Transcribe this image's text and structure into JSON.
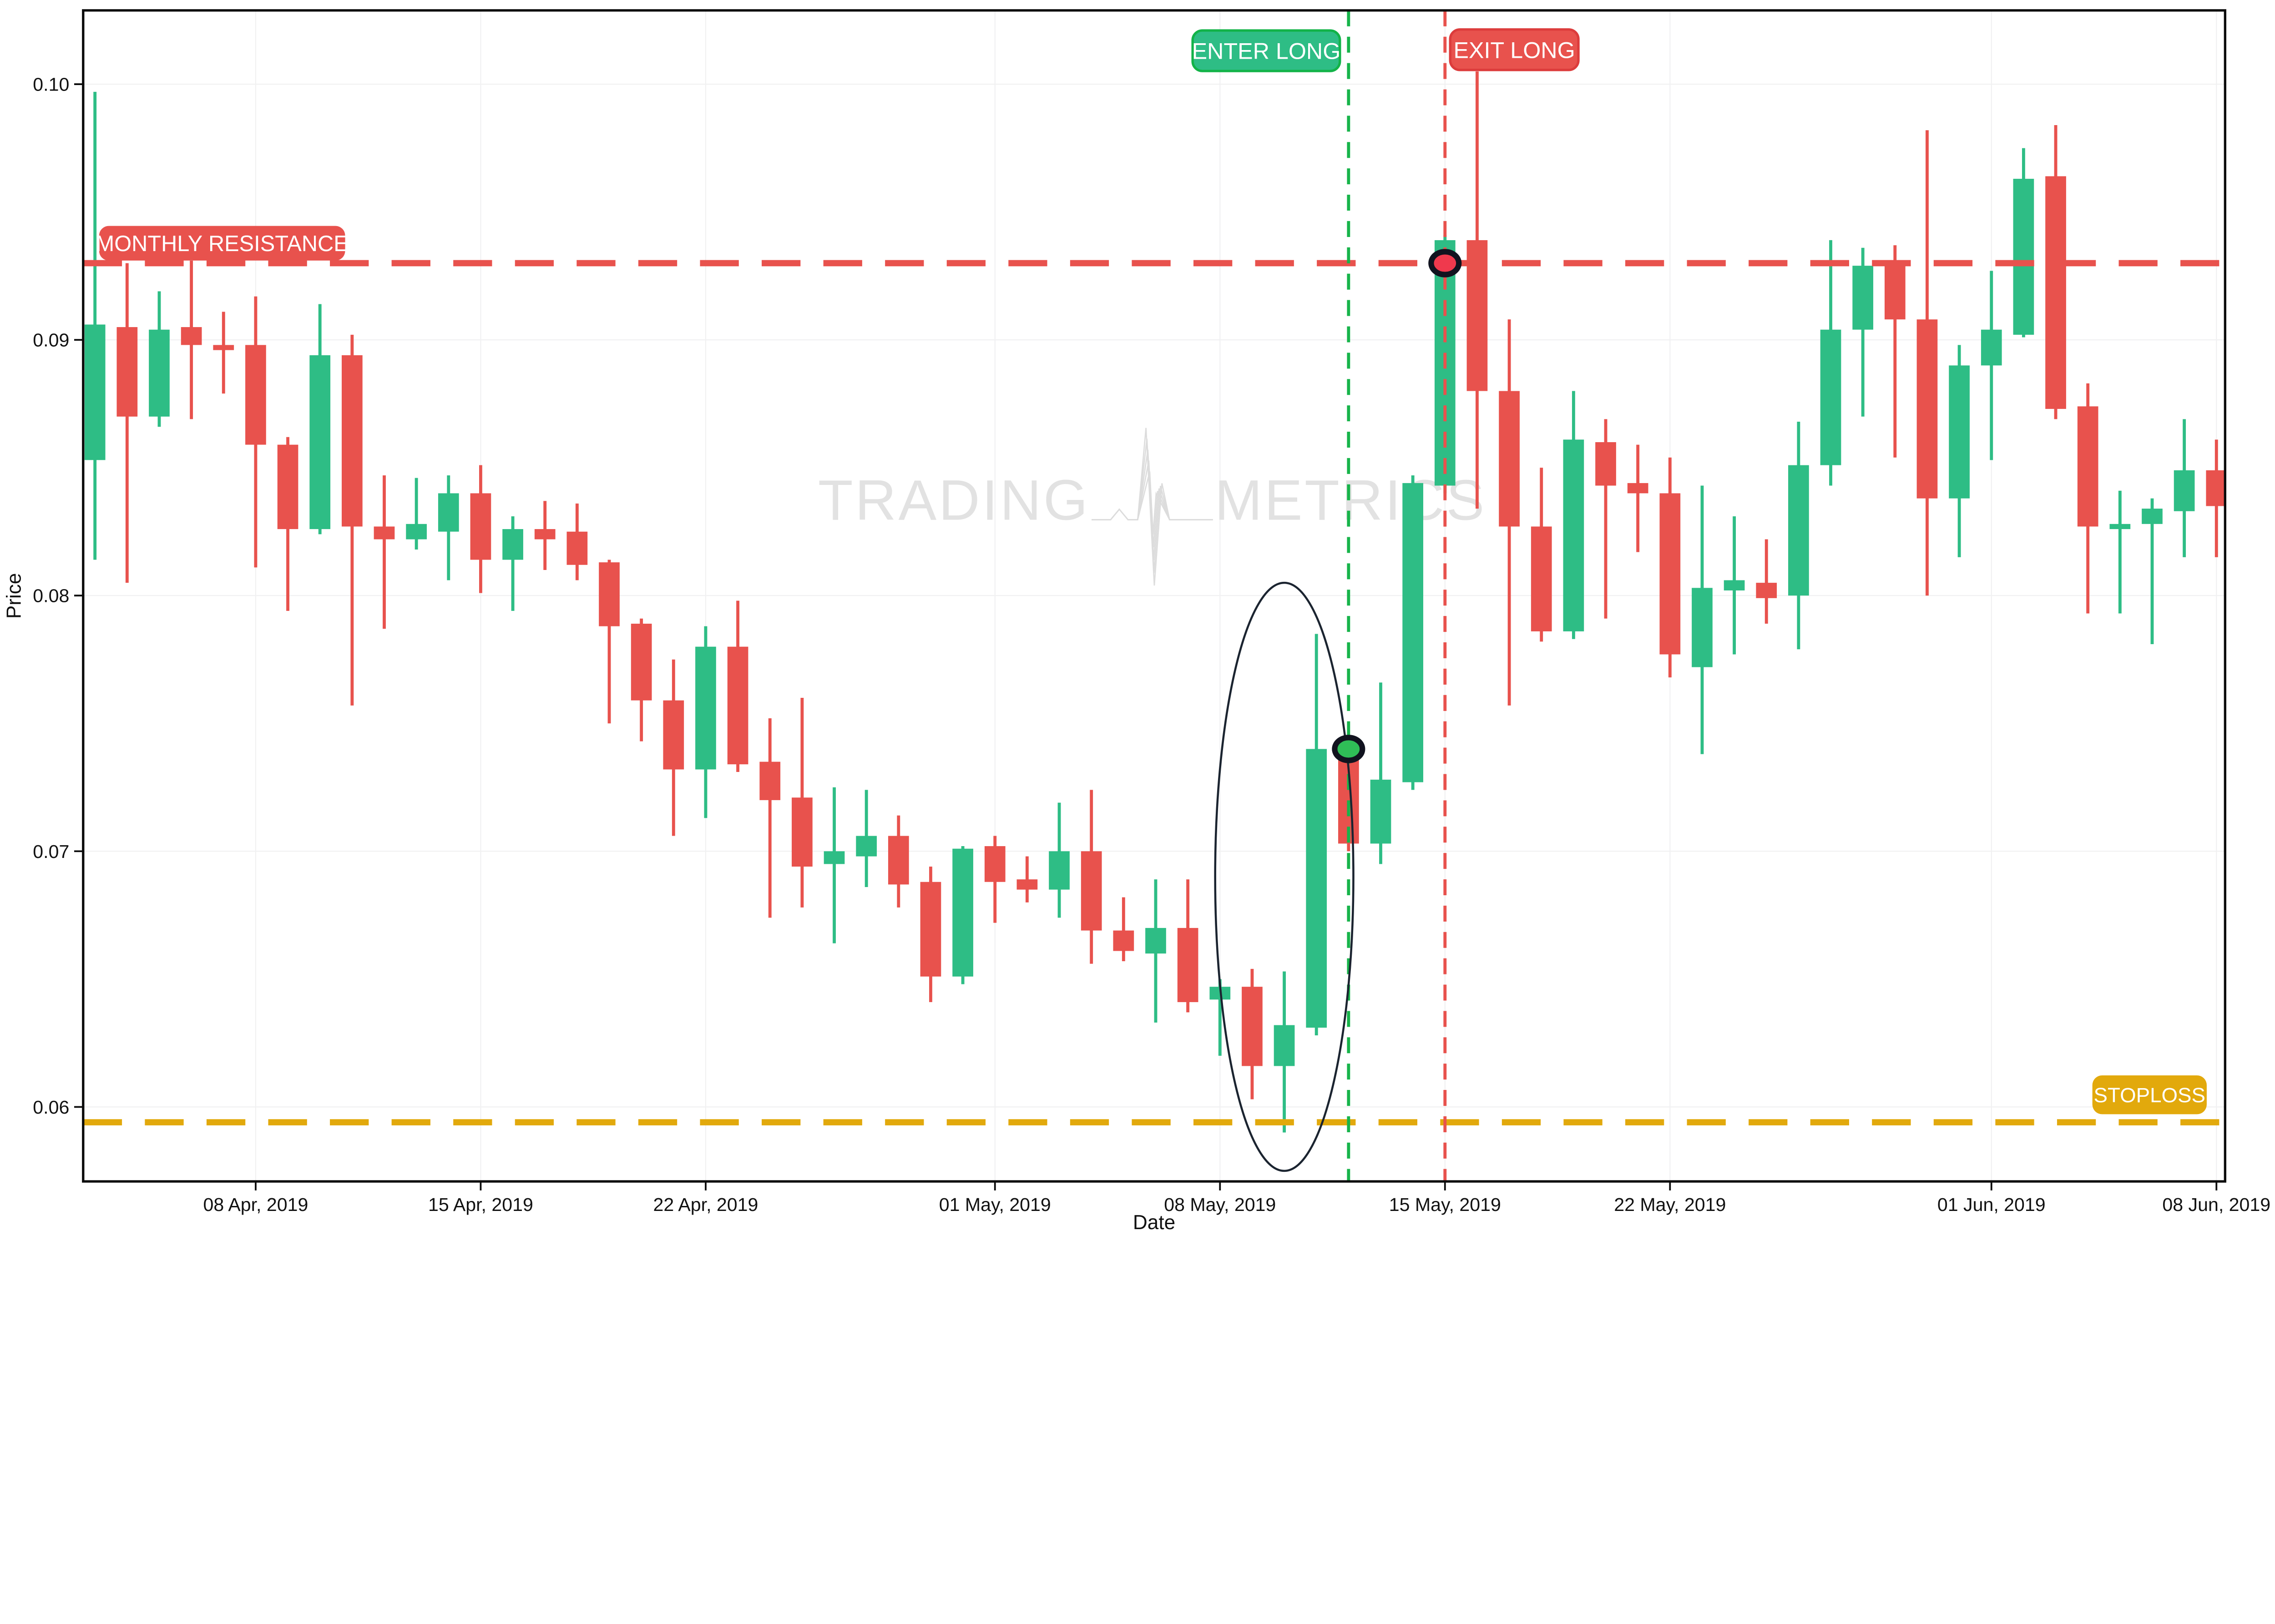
{
  "watermark": {
    "left": "TRADING",
    "right": "METRICS",
    "icon": "pulse-icon",
    "color": "#e2e2e2"
  },
  "axes": {
    "x_label": "Date",
    "y_label": "Price",
    "x_ticks": [
      {
        "date": "2019-04-08",
        "label": "08 Apr, 2019"
      },
      {
        "date": "2019-04-15",
        "label": "15 Apr, 2019"
      },
      {
        "date": "2019-04-22",
        "label": "22 Apr, 2019"
      },
      {
        "date": "2019-05-01",
        "label": "01 May, 2019"
      },
      {
        "date": "2019-05-08",
        "label": "08 May, 2019"
      },
      {
        "date": "2019-05-15",
        "label": "15 May, 2019"
      },
      {
        "date": "2019-05-22",
        "label": "22 May, 2019"
      },
      {
        "date": "2019-06-01",
        "label": "01 Jun, 2019"
      },
      {
        "date": "2019-06-08",
        "label": "08 Jun, 2019"
      }
    ],
    "y_ticks": [
      {
        "value": 0.06,
        "label": "0.06"
      },
      {
        "value": 0.07,
        "label": "0.07"
      },
      {
        "value": 0.08,
        "label": "0.08"
      },
      {
        "value": 0.09,
        "label": "0.09"
      },
      {
        "value": 0.1,
        "label": "0.10"
      }
    ]
  },
  "chart_data": {
    "type": "candlestick",
    "xlabel": "Date",
    "ylabel": "Price",
    "x_range": [
      "2019-04-03",
      "2019-06-08"
    ],
    "y_gridlines": [
      0.06,
      0.07,
      0.08,
      0.09,
      0.1
    ],
    "colors": {
      "up": "#2EBD85",
      "down": "#E8524D",
      "grid": "#f1f1f2",
      "spine": "#0b0b0b"
    },
    "candles": [
      {
        "date": "2019-04-03",
        "o": 0.0853,
        "h": 0.0997,
        "l": 0.0814,
        "c": 0.0906
      },
      {
        "date": "2019-04-04",
        "o": 0.0905,
        "h": 0.093,
        "l": 0.0805,
        "c": 0.087
      },
      {
        "date": "2019-04-05",
        "o": 0.087,
        "h": 0.0919,
        "l": 0.0866,
        "c": 0.0904
      },
      {
        "date": "2019-04-06",
        "o": 0.0905,
        "h": 0.0931,
        "l": 0.0869,
        "c": 0.0898
      },
      {
        "date": "2019-04-07",
        "o": 0.0898,
        "h": 0.0911,
        "l": 0.0879,
        "c": 0.0896
      },
      {
        "date": "2019-04-08",
        "o": 0.0898,
        "h": 0.0917,
        "l": 0.0811,
        "c": 0.0859
      },
      {
        "date": "2019-04-09",
        "o": 0.0859,
        "h": 0.0862,
        "l": 0.0794,
        "c": 0.0826
      },
      {
        "date": "2019-04-10",
        "o": 0.0826,
        "h": 0.0914,
        "l": 0.0824,
        "c": 0.0894
      },
      {
        "date": "2019-04-11",
        "o": 0.0894,
        "h": 0.0902,
        "l": 0.0757,
        "c": 0.0827
      },
      {
        "date": "2019-04-12",
        "o": 0.0827,
        "h": 0.0847,
        "l": 0.0787,
        "c": 0.0822
      },
      {
        "date": "2019-04-13",
        "o": 0.0822,
        "h": 0.0846,
        "l": 0.0818,
        "c": 0.0828
      },
      {
        "date": "2019-04-14",
        "o": 0.0825,
        "h": 0.0847,
        "l": 0.0806,
        "c": 0.084
      },
      {
        "date": "2019-04-15",
        "o": 0.084,
        "h": 0.0851,
        "l": 0.0801,
        "c": 0.0814
      },
      {
        "date": "2019-04-16",
        "o": 0.0814,
        "h": 0.0831,
        "l": 0.0794,
        "c": 0.0826
      },
      {
        "date": "2019-04-17",
        "o": 0.0826,
        "h": 0.0837,
        "l": 0.081,
        "c": 0.0822
      },
      {
        "date": "2019-04-18",
        "o": 0.0825,
        "h": 0.0836,
        "l": 0.0806,
        "c": 0.0812
      },
      {
        "date": "2019-04-19",
        "o": 0.0813,
        "h": 0.0814,
        "l": 0.075,
        "c": 0.0788
      },
      {
        "date": "2019-04-20",
        "o": 0.0789,
        "h": 0.0791,
        "l": 0.0743,
        "c": 0.0759
      },
      {
        "date": "2019-04-21",
        "o": 0.0759,
        "h": 0.0775,
        "l": 0.0706,
        "c": 0.0732
      },
      {
        "date": "2019-04-22",
        "o": 0.0732,
        "h": 0.0788,
        "l": 0.0713,
        "c": 0.078
      },
      {
        "date": "2019-04-23",
        "o": 0.078,
        "h": 0.0798,
        "l": 0.0731,
        "c": 0.0734
      },
      {
        "date": "2019-04-24",
        "o": 0.0735,
        "h": 0.0752,
        "l": 0.0674,
        "c": 0.072
      },
      {
        "date": "2019-04-25",
        "o": 0.0721,
        "h": 0.076,
        "l": 0.0678,
        "c": 0.0694
      },
      {
        "date": "2019-04-26",
        "o": 0.0695,
        "h": 0.0725,
        "l": 0.0664,
        "c": 0.07
      },
      {
        "date": "2019-04-27",
        "o": 0.0698,
        "h": 0.0724,
        "l": 0.0686,
        "c": 0.0706
      },
      {
        "date": "2019-04-28",
        "o": 0.0706,
        "h": 0.0714,
        "l": 0.0678,
        "c": 0.0687
      },
      {
        "date": "2019-04-29",
        "o": 0.0688,
        "h": 0.0694,
        "l": 0.0641,
        "c": 0.0651
      },
      {
        "date": "2019-04-30",
        "o": 0.0651,
        "h": 0.0702,
        "l": 0.0648,
        "c": 0.0701
      },
      {
        "date": "2019-05-01",
        "o": 0.0702,
        "h": 0.0706,
        "l": 0.0672,
        "c": 0.0688
      },
      {
        "date": "2019-05-02",
        "o": 0.0689,
        "h": 0.0698,
        "l": 0.068,
        "c": 0.0685
      },
      {
        "date": "2019-05-03",
        "o": 0.0685,
        "h": 0.0719,
        "l": 0.0674,
        "c": 0.07
      },
      {
        "date": "2019-05-04",
        "o": 0.07,
        "h": 0.0724,
        "l": 0.0656,
        "c": 0.0669
      },
      {
        "date": "2019-05-05",
        "o": 0.0669,
        "h": 0.0682,
        "l": 0.0657,
        "c": 0.0661
      },
      {
        "date": "2019-05-06",
        "o": 0.066,
        "h": 0.0689,
        "l": 0.0633,
        "c": 0.067
      },
      {
        "date": "2019-05-07",
        "o": 0.067,
        "h": 0.0689,
        "l": 0.0637,
        "c": 0.0641
      },
      {
        "date": "2019-05-08",
        "o": 0.0642,
        "h": 0.065,
        "l": 0.062,
        "c": 0.0647
      },
      {
        "date": "2019-05-09",
        "o": 0.0647,
        "h": 0.0654,
        "l": 0.0603,
        "c": 0.0616
      },
      {
        "date": "2019-05-10",
        "o": 0.0616,
        "h": 0.0653,
        "l": 0.059,
        "c": 0.0632
      },
      {
        "date": "2019-05-11",
        "o": 0.0631,
        "h": 0.0785,
        "l": 0.0628,
        "c": 0.074
      },
      {
        "date": "2019-05-12",
        "o": 0.0738,
        "h": 0.0742,
        "l": 0.07,
        "c": 0.0703
      },
      {
        "date": "2019-05-13",
        "o": 0.0703,
        "h": 0.0766,
        "l": 0.0695,
        "c": 0.0728
      },
      {
        "date": "2019-05-14",
        "o": 0.0727,
        "h": 0.0847,
        "l": 0.0724,
        "c": 0.0844
      },
      {
        "date": "2019-05-15",
        "o": 0.0843,
        "h": 0.0941,
        "l": 0.084,
        "c": 0.0939
      },
      {
        "date": "2019-05-16",
        "o": 0.0939,
        "h": 0.1005,
        "l": 0.0834,
        "c": 0.088
      },
      {
        "date": "2019-05-17",
        "o": 0.088,
        "h": 0.0908,
        "l": 0.0757,
        "c": 0.0827
      },
      {
        "date": "2019-05-18",
        "o": 0.0827,
        "h": 0.085,
        "l": 0.0782,
        "c": 0.0786
      },
      {
        "date": "2019-05-19",
        "o": 0.0786,
        "h": 0.088,
        "l": 0.0783,
        "c": 0.0861
      },
      {
        "date": "2019-05-20",
        "o": 0.086,
        "h": 0.0869,
        "l": 0.0791,
        "c": 0.0843
      },
      {
        "date": "2019-05-21",
        "o": 0.0844,
        "h": 0.0859,
        "l": 0.0817,
        "c": 0.084
      },
      {
        "date": "2019-05-22",
        "o": 0.084,
        "h": 0.0854,
        "l": 0.0768,
        "c": 0.0777
      },
      {
        "date": "2019-05-23",
        "o": 0.0772,
        "h": 0.0843,
        "l": 0.0738,
        "c": 0.0803
      },
      {
        "date": "2019-05-24",
        "o": 0.0802,
        "h": 0.0831,
        "l": 0.0777,
        "c": 0.0806
      },
      {
        "date": "2019-05-25",
        "o": 0.0805,
        "h": 0.0822,
        "l": 0.0789,
        "c": 0.0799
      },
      {
        "date": "2019-05-26",
        "o": 0.08,
        "h": 0.0868,
        "l": 0.0779,
        "c": 0.0851
      },
      {
        "date": "2019-05-27",
        "o": 0.0851,
        "h": 0.0939,
        "l": 0.0843,
        "c": 0.0904
      },
      {
        "date": "2019-05-28",
        "o": 0.0904,
        "h": 0.0936,
        "l": 0.087,
        "c": 0.0929
      },
      {
        "date": "2019-05-29",
        "o": 0.0929,
        "h": 0.0937,
        "l": 0.0854,
        "c": 0.0908
      },
      {
        "date": "2019-05-30",
        "o": 0.0908,
        "h": 0.0982,
        "l": 0.08,
        "c": 0.0838
      },
      {
        "date": "2019-05-31",
        "o": 0.0838,
        "h": 0.0898,
        "l": 0.0815,
        "c": 0.089
      },
      {
        "date": "2019-06-01",
        "o": 0.089,
        "h": 0.0927,
        "l": 0.0853,
        "c": 0.0904
      },
      {
        "date": "2019-06-02",
        "o": 0.0902,
        "h": 0.0975,
        "l": 0.0901,
        "c": 0.0963
      },
      {
        "date": "2019-06-03",
        "o": 0.0964,
        "h": 0.0984,
        "l": 0.0869,
        "c": 0.0873
      },
      {
        "date": "2019-06-04",
        "o": 0.0874,
        "h": 0.0883,
        "l": 0.0793,
        "c": 0.0827
      },
      {
        "date": "2019-06-05",
        "o": 0.0826,
        "h": 0.0841,
        "l": 0.0793,
        "c": 0.0828
      },
      {
        "date": "2019-06-06",
        "o": 0.0828,
        "h": 0.0838,
        "l": 0.0781,
        "c": 0.0834
      },
      {
        "date": "2019-06-07",
        "o": 0.0833,
        "h": 0.0869,
        "l": 0.0815,
        "c": 0.0849
      },
      {
        "date": "2019-06-08",
        "o": 0.0849,
        "h": 0.0861,
        "l": 0.0815,
        "c": 0.0835
      }
    ],
    "annotations": {
      "hlines": [
        {
          "id": "monthly-resistance",
          "price": 0.093,
          "color": "#E8524D",
          "label": "MONTHLY RESISTANCE",
          "label_side": "left"
        },
        {
          "id": "stoploss",
          "price": 0.0594,
          "color": "#E2A90C",
          "label": "STOPLOSS",
          "label_side": "right"
        }
      ],
      "vlines": [
        {
          "id": "enter-long",
          "date": "2019-05-12",
          "color": "#17B44A",
          "label": "ENTER LONG",
          "box_fill": "#2EBD85",
          "box_stroke": "#12B348",
          "label_side": "left"
        },
        {
          "id": "exit-long",
          "date": "2019-05-15",
          "color": "#E8524D",
          "label": "EXIT LONG",
          "box_fill": "#E8524D",
          "box_stroke": "#DC3C3C",
          "label_side": "right"
        }
      ],
      "markers": [
        {
          "id": "entry-marker",
          "date": "2019-05-12",
          "price": 0.074,
          "fill": "#2FBE57",
          "ring": "#11131f"
        },
        {
          "id": "exit-marker",
          "date": "2019-05-15",
          "price": 0.093,
          "fill": "#F0394D",
          "ring": "#11131f"
        }
      ],
      "ellipse": {
        "center_date": "2019-05-10",
        "center_price": 0.069,
        "rx_days": 2.15,
        "ry_price": 0.0115,
        "stroke": "#1b2430"
      }
    }
  }
}
